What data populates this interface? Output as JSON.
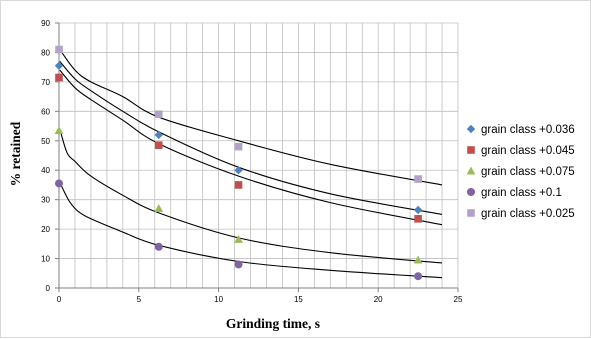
{
  "chart_data": {
    "type": "scatter",
    "title": "",
    "xlabel": "Grinding time, s",
    "ylabel": "% retained",
    "xlim": [
      0,
      25
    ],
    "ylim": [
      0,
      90
    ],
    "x_ticks": [
      0,
      5,
      10,
      15,
      20,
      25
    ],
    "y_ticks": [
      0,
      10,
      20,
      30,
      40,
      50,
      60,
      70,
      80,
      90
    ],
    "grid": "on",
    "legend_position": "right",
    "x": [
      0,
      6.25,
      11.25,
      22.5
    ],
    "series": [
      {
        "name": "grain class +0.036",
        "color": "#4f81bd",
        "marker": "diamond",
        "values": [
          75.5,
          52,
          40,
          26.5
        ]
      },
      {
        "name": "grain class +0.045",
        "color": "#c0504d",
        "marker": "square",
        "values": [
          71.5,
          48.5,
          35,
          23.5
        ]
      },
      {
        "name": "grain class +0.075",
        "color": "#9bbb59",
        "marker": "triangle",
        "values": [
          53.5,
          27,
          16.5,
          9.5
        ]
      },
      {
        "name": "grain class +0.1",
        "color": "#8064a2",
        "marker": "circle",
        "values": [
          35.5,
          14,
          8,
          4
        ]
      },
      {
        "name": "grain class +0.025",
        "color": "#b3a2c7",
        "marker": "square",
        "values": [
          81,
          59,
          48,
          37
        ]
      }
    ],
    "trendlines": [
      {
        "type": "power",
        "points": [
          [
            0.05,
            81
          ],
          [
            1,
            74
          ],
          [
            2,
            70
          ],
          [
            4,
            65
          ],
          [
            6.25,
            58
          ],
          [
            11.25,
            50
          ],
          [
            17,
            42
          ],
          [
            24,
            35
          ]
        ]
      },
      {
        "type": "power",
        "points": [
          [
            0.05,
            77
          ],
          [
            1,
            71
          ],
          [
            2,
            67
          ],
          [
            4,
            60
          ],
          [
            6.25,
            53
          ],
          [
            11.25,
            41
          ],
          [
            17,
            32
          ],
          [
            24,
            25
          ]
        ]
      },
      {
        "type": "power",
        "points": [
          [
            0.05,
            74
          ],
          [
            1,
            68
          ],
          [
            2,
            64
          ],
          [
            4,
            57
          ],
          [
            6.25,
            49
          ],
          [
            11.25,
            38
          ],
          [
            17,
            29
          ],
          [
            24,
            21.5
          ]
        ]
      },
      {
        "type": "power",
        "points": [
          [
            0.05,
            54
          ],
          [
            0.5,
            46
          ],
          [
            1,
            43
          ],
          [
            2,
            38
          ],
          [
            4,
            31.5
          ],
          [
            6.25,
            25.5
          ],
          [
            11.25,
            17
          ],
          [
            17,
            12
          ],
          [
            24,
            8.5
          ]
        ]
      },
      {
        "type": "power",
        "points": [
          [
            0.05,
            36
          ],
          [
            0.3,
            33
          ],
          [
            0.7,
            29
          ],
          [
            1.2,
            26
          ],
          [
            2,
            23.5
          ],
          [
            4,
            19
          ],
          [
            6.25,
            14.5
          ],
          [
            11.25,
            9
          ],
          [
            17,
            6
          ],
          [
            24,
            3.5
          ]
        ]
      }
    ]
  }
}
